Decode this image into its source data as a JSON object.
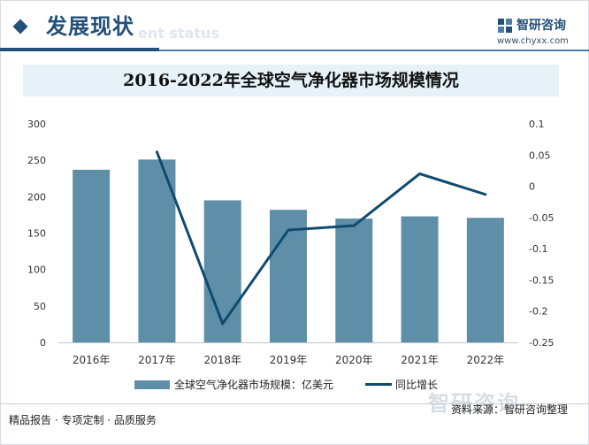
{
  "header": {
    "section_title": "发展现状",
    "section_sub": "ent status",
    "brand": "智研咨询",
    "brand_url": "www.chyxx.com"
  },
  "footer": {
    "left_text": "精品报告 · 专项定制 · 品质服务",
    "source": "资料来源：智研咨询整理",
    "logo_text": "智研咨询"
  },
  "chart_data": {
    "type": "bar",
    "title": "2016-2022年全球空气净化器市场规模情况",
    "categories": [
      "2016年",
      "2017年",
      "2018年",
      "2019年",
      "2020年",
      "2021年",
      "2022年"
    ],
    "series": [
      {
        "name": "全球空气净化器市场规模：亿美元",
        "type": "bar",
        "axis": "left",
        "color": "#5f8fa8",
        "values": [
          237,
          251,
          195,
          182,
          170,
          173,
          171
        ]
      },
      {
        "name": "同比增长",
        "type": "line",
        "axis": "right",
        "color": "#0f4b6e",
        "values": [
          null,
          0.055,
          -0.22,
          -0.07,
          -0.063,
          0.02,
          -0.013
        ]
      }
    ],
    "left_axis": {
      "ylim": [
        0,
        300
      ],
      "ticks": [
        "0",
        "50",
        "100",
        "150",
        "200",
        "250",
        "300"
      ]
    },
    "right_axis": {
      "ylim": [
        -0.25,
        0.1
      ],
      "ticks": [
        "0.1",
        "0.05",
        "0",
        "-0.05",
        "-0.1",
        "-0.15",
        "-0.2",
        "-0.25"
      ]
    },
    "legend": "bottom",
    "grid": false
  }
}
